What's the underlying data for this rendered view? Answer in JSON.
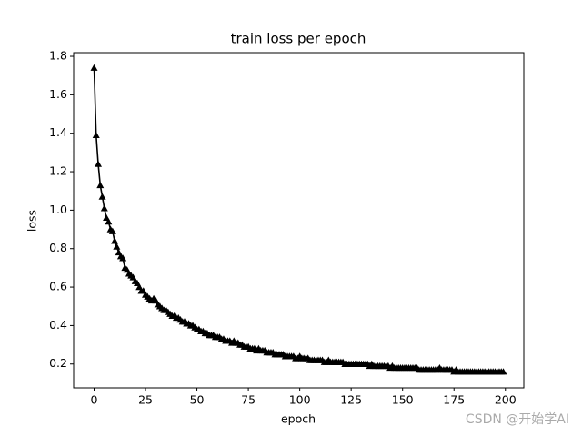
{
  "chart_data": {
    "type": "line",
    "title": "train loss per epoch",
    "x_label": "epoch",
    "y_label": "loss",
    "watermark": "CSDN @开始学AI",
    "x": [
      0,
      1,
      2,
      3,
      4,
      5,
      6,
      7,
      8,
      9,
      10,
      11,
      12,
      13,
      14,
      15,
      16,
      17,
      18,
      19,
      20,
      21,
      22,
      23,
      24,
      25,
      26,
      27,
      28,
      29,
      30,
      31,
      32,
      33,
      34,
      35,
      36,
      37,
      38,
      39,
      40,
      41,
      42,
      43,
      44,
      45,
      46,
      47,
      48,
      49,
      50,
      51,
      52,
      53,
      54,
      55,
      56,
      57,
      58,
      59,
      60,
      61,
      62,
      63,
      64,
      65,
      66,
      67,
      68,
      69,
      70,
      71,
      72,
      73,
      74,
      75,
      76,
      77,
      78,
      79,
      80,
      81,
      82,
      83,
      84,
      85,
      86,
      87,
      88,
      89,
      90,
      91,
      92,
      93,
      94,
      95,
      96,
      97,
      98,
      99,
      100,
      101,
      102,
      103,
      104,
      105,
      106,
      107,
      108,
      109,
      110,
      111,
      112,
      113,
      114,
      115,
      116,
      117,
      118,
      119,
      120,
      121,
      122,
      123,
      124,
      125,
      126,
      127,
      128,
      129,
      130,
      131,
      132,
      133,
      134,
      135,
      136,
      137,
      138,
      139,
      140,
      141,
      142,
      143,
      144,
      145,
      146,
      147,
      148,
      149,
      150,
      151,
      152,
      153,
      154,
      155,
      156,
      157,
      158,
      159,
      160,
      161,
      162,
      163,
      164,
      165,
      166,
      167,
      168,
      169,
      170,
      171,
      172,
      173,
      174,
      175,
      176,
      177,
      178,
      179,
      180,
      181,
      182,
      183,
      184,
      185,
      186,
      187,
      188,
      189,
      190,
      191,
      192,
      193,
      194,
      195,
      196,
      197,
      198,
      199
    ],
    "series": [
      {
        "color": "#000000",
        "marker": "triangle",
        "values": [
          1.74,
          1.39,
          1.24,
          1.13,
          1.07,
          1.01,
          0.96,
          0.94,
          0.9,
          0.89,
          0.84,
          0.81,
          0.78,
          0.76,
          0.75,
          0.7,
          0.69,
          0.67,
          0.66,
          0.65,
          0.63,
          0.62,
          0.6,
          0.58,
          0.58,
          0.56,
          0.55,
          0.54,
          0.53,
          0.54,
          0.53,
          0.51,
          0.5,
          0.49,
          0.48,
          0.48,
          0.47,
          0.46,
          0.45,
          0.45,
          0.44,
          0.44,
          0.43,
          0.42,
          0.42,
          0.41,
          0.41,
          0.4,
          0.4,
          0.39,
          0.38,
          0.38,
          0.37,
          0.37,
          0.36,
          0.36,
          0.35,
          0.35,
          0.35,
          0.34,
          0.34,
          0.34,
          0.33,
          0.33,
          0.32,
          0.32,
          0.32,
          0.31,
          0.32,
          0.31,
          0.31,
          0.3,
          0.3,
          0.29,
          0.29,
          0.29,
          0.28,
          0.28,
          0.28,
          0.27,
          0.28,
          0.27,
          0.27,
          0.27,
          0.26,
          0.26,
          0.26,
          0.26,
          0.25,
          0.25,
          0.25,
          0.25,
          0.25,
          0.24,
          0.24,
          0.24,
          0.24,
          0.24,
          0.23,
          0.23,
          0.24,
          0.23,
          0.23,
          0.23,
          0.23,
          0.22,
          0.22,
          0.22,
          0.22,
          0.22,
          0.22,
          0.22,
          0.21,
          0.21,
          0.22,
          0.21,
          0.21,
          0.21,
          0.21,
          0.21,
          0.21,
          0.21,
          0.2,
          0.2,
          0.2,
          0.2,
          0.2,
          0.2,
          0.2,
          0.2,
          0.2,
          0.2,
          0.2,
          0.2,
          0.19,
          0.2,
          0.19,
          0.19,
          0.19,
          0.19,
          0.19,
          0.19,
          0.19,
          0.19,
          0.18,
          0.19,
          0.18,
          0.18,
          0.18,
          0.18,
          0.18,
          0.18,
          0.18,
          0.18,
          0.18,
          0.18,
          0.18,
          0.18,
          0.17,
          0.17,
          0.17,
          0.17,
          0.17,
          0.17,
          0.17,
          0.17,
          0.17,
          0.17,
          0.18,
          0.17,
          0.17,
          0.17,
          0.17,
          0.17,
          0.17,
          0.16,
          0.17,
          0.16,
          0.16,
          0.16,
          0.16,
          0.16,
          0.16,
          0.16,
          0.16,
          0.16,
          0.16,
          0.16,
          0.16,
          0.16,
          0.16,
          0.16,
          0.16,
          0.16,
          0.16,
          0.16,
          0.16,
          0.16,
          0.16,
          0.16
        ]
      }
    ],
    "xlim": [
      -9.95,
      208.95
    ],
    "xticks": [
      0,
      25,
      50,
      75,
      100,
      125,
      150,
      175,
      200
    ],
    "ylim": [
      0.076,
      1.819
    ],
    "yticks": [
      0.2,
      0.4,
      0.6,
      0.8,
      {
        "value": 1,
        "label": "1.0"
      },
      1.2,
      1.4,
      1.6,
      1.8
    ],
    "grid": false
  }
}
